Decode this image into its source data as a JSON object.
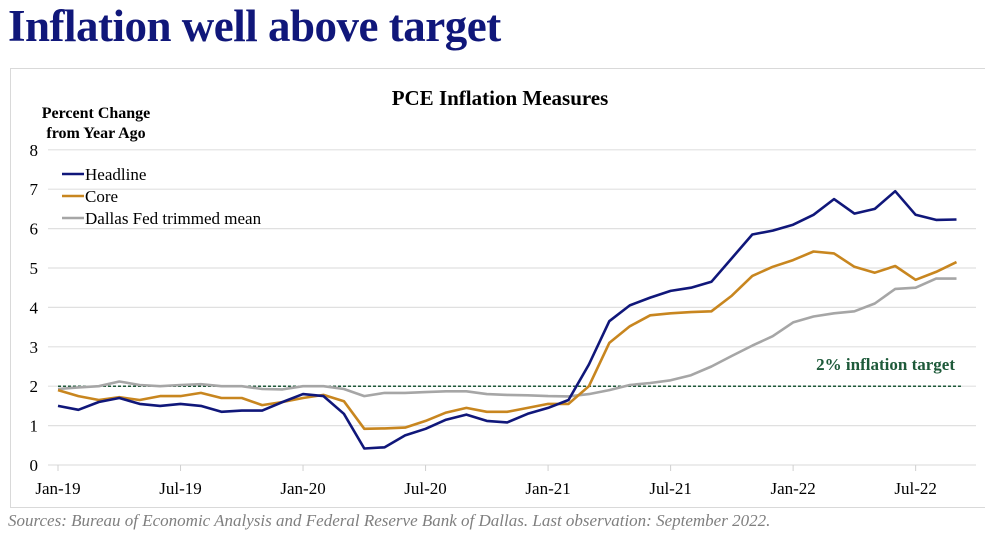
{
  "title": "Inflation well above target",
  "sources": "Sources: Bureau of Economic Analysis and Federal Reserve Bank of Dallas. Last observation: September 2022.",
  "chart_data": {
    "type": "line",
    "title": "PCE Inflation Measures",
    "ylabel": "Percent Change from Year Ago",
    "ylabel_lines": [
      "Percent Change",
      "from Year Ago"
    ],
    "ylim": [
      0,
      8
    ],
    "yticks": [
      0,
      1,
      2,
      3,
      4,
      5,
      6,
      7,
      8
    ],
    "xtick_labels": [
      "Jan-19",
      "Jul-19",
      "Jan-20",
      "Jul-20",
      "Jan-21",
      "Jul-21",
      "Jan-22",
      "Jul-22"
    ],
    "x_start": "Jan-19",
    "x_end": "Sep-22",
    "grid": true,
    "legend_position": "top-left",
    "reference_line": {
      "value": 2,
      "label": "2% inflation target",
      "color": "#1e5a3a"
    },
    "series": [
      {
        "name": "Headline",
        "color": "#10177a",
        "values": [
          1.5,
          1.4,
          1.6,
          1.7,
          1.55,
          1.5,
          1.55,
          1.5,
          1.35,
          1.38,
          1.38,
          1.6,
          1.8,
          1.75,
          1.3,
          0.42,
          0.45,
          0.75,
          0.92,
          1.15,
          1.28,
          1.12,
          1.08,
          1.3,
          1.45,
          1.65,
          2.55,
          3.65,
          4.05,
          4.25,
          4.42,
          4.5,
          4.65,
          5.25,
          5.85,
          5.95,
          6.1,
          6.35,
          6.75,
          6.38,
          6.5,
          6.95,
          6.35,
          6.22,
          6.23
        ]
      },
      {
        "name": "Core",
        "color": "#c8861f",
        "values": [
          1.9,
          1.75,
          1.65,
          1.72,
          1.65,
          1.75,
          1.75,
          1.83,
          1.7,
          1.7,
          1.52,
          1.6,
          1.7,
          1.78,
          1.62,
          0.92,
          0.93,
          0.95,
          1.12,
          1.33,
          1.45,
          1.35,
          1.35,
          1.45,
          1.55,
          1.55,
          2.0,
          3.1,
          3.52,
          3.8,
          3.85,
          3.88,
          3.9,
          4.3,
          4.8,
          5.03,
          5.2,
          5.42,
          5.37,
          5.03,
          4.88,
          5.05,
          4.7,
          4.9,
          5.15
        ]
      },
      {
        "name": "Dallas Fed trimmed mean",
        "color": "#a6a6a6",
        "values": [
          1.93,
          1.97,
          2.0,
          2.12,
          2.03,
          2.0,
          2.03,
          2.05,
          2.0,
          2.0,
          1.93,
          1.92,
          2.0,
          2.0,
          1.93,
          1.75,
          1.83,
          1.83,
          1.85,
          1.87,
          1.87,
          1.8,
          1.78,
          1.77,
          1.75,
          1.74,
          1.8,
          1.9,
          2.03,
          2.08,
          2.15,
          2.28,
          2.5,
          2.77,
          3.03,
          3.27,
          3.62,
          3.77,
          3.85,
          3.9,
          4.1,
          4.47,
          4.5,
          4.73,
          4.73
        ]
      }
    ]
  }
}
